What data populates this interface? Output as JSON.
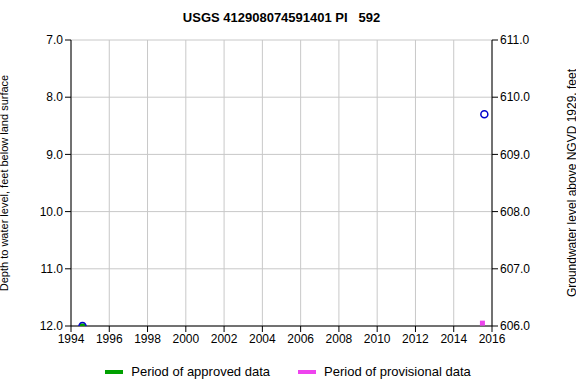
{
  "chart_data": {
    "type": "scatter",
    "title": "USGS 412908074591401 PI   592",
    "y_label": "Depth to water level, feet below land surface",
    "y2_label": "Groundwater level above NGVD 1929, feet",
    "xlim": [
      1994,
      2016
    ],
    "xticks": [
      1994,
      1996,
      1998,
      2000,
      2002,
      2004,
      2006,
      2008,
      2010,
      2012,
      2014,
      2016
    ],
    "ylim": [
      12,
      7
    ],
    "yticks": [
      {
        "value": 7,
        "label": "7.0"
      },
      {
        "value": 8,
        "label": "8.0"
      },
      {
        "value": 9,
        "label": "9.0"
      },
      {
        "value": 10,
        "label": "10.0"
      },
      {
        "value": 11,
        "label": "11.0"
      },
      {
        "value": 12,
        "label": "12.0"
      }
    ],
    "y2lim": [
      606,
      611
    ],
    "y2ticks": [
      {
        "value": 606,
        "label": "606.0"
      },
      {
        "value": 607,
        "label": "607.0"
      },
      {
        "value": 608,
        "label": "608.0"
      },
      {
        "value": 609,
        "label": "609.0"
      },
      {
        "value": 610,
        "label": "610.0"
      },
      {
        "value": 611,
        "label": "611.0"
      }
    ],
    "grid": true,
    "series": [
      {
        "name": "Period of approved data",
        "color": "#00a000",
        "marker": "square",
        "x": [
          1994.6
        ],
        "values": [
          12.0
        ]
      },
      {
        "name": "Period of provisional data",
        "color": "#ee44ee",
        "marker": "square",
        "x": [
          2015.5
        ],
        "values": [
          11.95
        ]
      },
      {
        "color": "#0000cc",
        "marker": "circle",
        "x": [
          1994.6,
          2015.6
        ],
        "values": [
          12.0,
          8.3
        ]
      }
    ]
  }
}
